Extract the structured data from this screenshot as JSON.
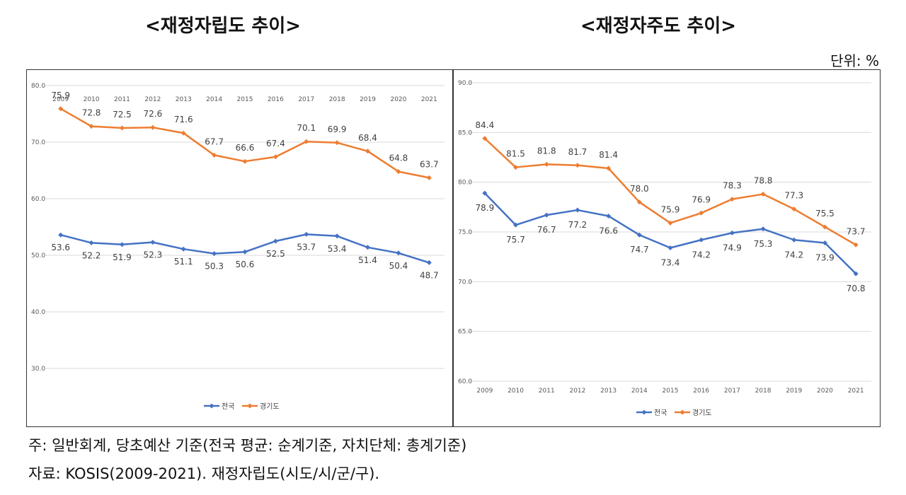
{
  "titles": [
    "<재정자립도 추이>",
    "<재정자주도 추이>"
  ],
  "unit_label": "단위: %",
  "notes": [
    "주: 일반회계, 당초예산 기준(전국 평균: 순계기준, 자치단체: 총계기준)",
    "자료: KOSIS(2009-2021). 재정자립도(시도/시/군/구)."
  ],
  "colors": {
    "national": "#4472C4",
    "gyeonggi": "#ED7D31",
    "grid": "#d9d9d9",
    "axis_text": "#595959"
  },
  "chart_data": [
    {
      "type": "line",
      "title": "<재정자립도 추이>",
      "categories": [
        "2009",
        "2010",
        "2011",
        "2012",
        "2013",
        "2014",
        "2015",
        "2016",
        "2017",
        "2018",
        "2019",
        "2020",
        "2021"
      ],
      "ylim": [
        30,
        80
      ],
      "yticks": [
        "30.0",
        "40.0",
        "50.0",
        "60.0",
        "70.0",
        "80.0"
      ],
      "grid": true,
      "legend": "bottom",
      "series": [
        {
          "name": "전국",
          "values": [
            53.6,
            52.2,
            51.9,
            52.3,
            51.1,
            50.3,
            50.6,
            52.5,
            53.7,
            53.4,
            51.4,
            50.4,
            48.7
          ]
        },
        {
          "name": "경기도",
          "values": [
            75.9,
            72.8,
            72.5,
            72.6,
            71.6,
            67.7,
            66.6,
            67.4,
            70.1,
            69.9,
            68.4,
            64.8,
            63.7
          ]
        }
      ]
    },
    {
      "type": "line",
      "title": "<재정자주도 추이>",
      "categories": [
        "2009",
        "2010",
        "2011",
        "2012",
        "2013",
        "2014",
        "2015",
        "2016",
        "2017",
        "2018",
        "2019",
        "2020",
        "2021"
      ],
      "ylim": [
        60,
        90
      ],
      "yticks": [
        "60.0",
        "65.0",
        "70.0",
        "75.0",
        "80.0",
        "85.0",
        "90.0"
      ],
      "grid": true,
      "legend": "bottom",
      "series": [
        {
          "name": "전국",
          "values": [
            78.9,
            75.7,
            76.7,
            77.2,
            76.6,
            74.7,
            73.4,
            74.2,
            74.9,
            75.3,
            74.2,
            73.9,
            70.8
          ]
        },
        {
          "name": "경기도",
          "values": [
            84.4,
            81.5,
            81.8,
            81.7,
            81.4,
            78.0,
            75.9,
            76.9,
            78.3,
            78.8,
            77.3,
            75.5,
            73.7
          ]
        }
      ]
    }
  ]
}
